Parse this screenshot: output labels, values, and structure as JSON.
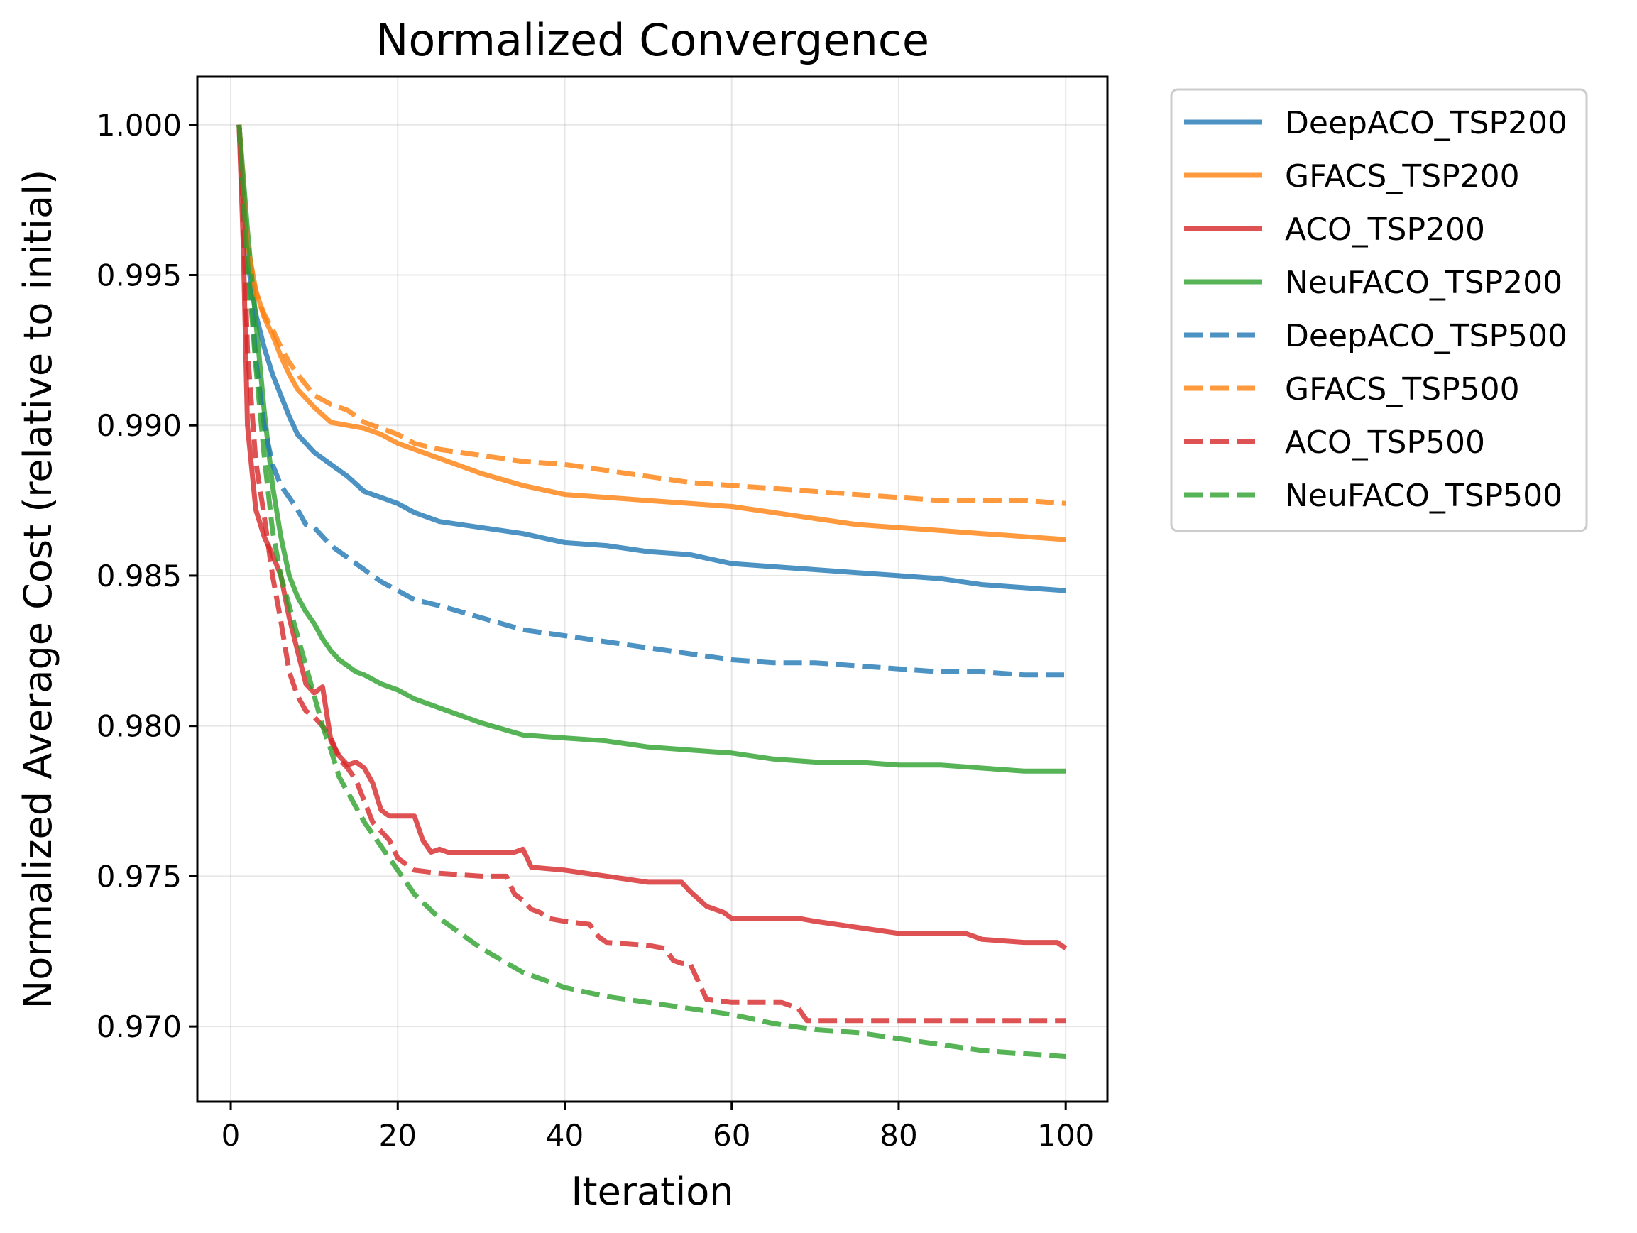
{
  "chart_data": {
    "type": "line",
    "title": "Normalized Convergence",
    "xlabel": "Iteration",
    "ylabel": "Normalized Average Cost (relative to initial)",
    "xlim": [
      -4,
      105
    ],
    "ylim": [
      0.9675,
      1.0016
    ],
    "xticks": [
      0,
      20,
      40,
      60,
      80,
      100
    ],
    "xtick_labels": [
      "0",
      "20",
      "40",
      "60",
      "80",
      "100"
    ],
    "yticks": [
      0.97,
      0.975,
      0.98,
      0.985,
      0.99,
      0.995,
      1.0
    ],
    "ytick_labels": [
      "0.970",
      "0.975",
      "0.980",
      "0.985",
      "0.990",
      "0.995",
      "1.000"
    ],
    "grid": true,
    "legend_position": "outside-right-top",
    "series": [
      {
        "name": "DeepACO_TSP200",
        "color": "#1f77b4",
        "dash": "solid",
        "x": [
          1,
          2,
          3,
          4,
          5,
          6,
          7,
          8,
          10,
          12,
          14,
          16,
          18,
          20,
          22,
          25,
          30,
          35,
          40,
          45,
          50,
          55,
          60,
          65,
          70,
          75,
          80,
          85,
          90,
          95,
          100
        ],
        "y": [
          1.0,
          0.9955,
          0.9937,
          0.9926,
          0.9917,
          0.991,
          0.9903,
          0.9897,
          0.9891,
          0.9887,
          0.9883,
          0.9878,
          0.9876,
          0.9874,
          0.9871,
          0.9868,
          0.9866,
          0.9864,
          0.9861,
          0.986,
          0.9858,
          0.9857,
          0.9854,
          0.9853,
          0.9852,
          0.9851,
          0.985,
          0.9849,
          0.9847,
          0.9846,
          0.9845
        ]
      },
      {
        "name": "GFACS_TSP200",
        "color": "#ff7f0e",
        "dash": "solid",
        "x": [
          1,
          2,
          3,
          4,
          5,
          6,
          7,
          8,
          10,
          12,
          14,
          16,
          18,
          20,
          22,
          25,
          30,
          35,
          40,
          45,
          50,
          55,
          60,
          65,
          70,
          75,
          80,
          85,
          90,
          95,
          100
        ],
        "y": [
          1.0,
          0.996,
          0.9945,
          0.9936,
          0.993,
          0.9923,
          0.9917,
          0.9912,
          0.9906,
          0.9901,
          0.99,
          0.9899,
          0.9897,
          0.9894,
          0.9892,
          0.9889,
          0.9884,
          0.988,
          0.9877,
          0.9876,
          0.9875,
          0.9874,
          0.9873,
          0.9871,
          0.9869,
          0.9867,
          0.9866,
          0.9865,
          0.9864,
          0.9863,
          0.9862
        ]
      },
      {
        "name": "ACO_TSP200",
        "color": "#d62728",
        "dash": "solid",
        "x": [
          1,
          1.5,
          2,
          3,
          4,
          5,
          6,
          7,
          8,
          9,
          10,
          11,
          12,
          13,
          14,
          15,
          16,
          17,
          18,
          19,
          20,
          22,
          23,
          24,
          25,
          26,
          30,
          34,
          35,
          36,
          40,
          45,
          50,
          54,
          55,
          57,
          59,
          60,
          65,
          68,
          70,
          75,
          80,
          85,
          88,
          90,
          95,
          99,
          100
        ],
        "y": [
          1.0,
          0.996,
          0.99,
          0.9872,
          0.9863,
          0.9857,
          0.985,
          0.9836,
          0.9825,
          0.9814,
          0.9811,
          0.9813,
          0.9795,
          0.979,
          0.9787,
          0.9788,
          0.9786,
          0.9781,
          0.9772,
          0.977,
          0.977,
          0.977,
          0.9762,
          0.9758,
          0.9759,
          0.9758,
          0.9758,
          0.9758,
          0.9759,
          0.9753,
          0.9752,
          0.975,
          0.9748,
          0.9748,
          0.9745,
          0.974,
          0.9738,
          0.9736,
          0.9736,
          0.9736,
          0.9735,
          0.9733,
          0.9731,
          0.9731,
          0.9731,
          0.9729,
          0.9728,
          0.9728,
          0.9726
        ]
      },
      {
        "name": "NeuFACO_TSP200",
        "color": "#2ca02c",
        "dash": "solid",
        "x": [
          1,
          2,
          3,
          4,
          5,
          6,
          7,
          8,
          9,
          10,
          11,
          12,
          13,
          14,
          15,
          16,
          18,
          20,
          22,
          25,
          30,
          35,
          40,
          45,
          50,
          55,
          60,
          65,
          70,
          75,
          80,
          85,
          90,
          95,
          100
        ],
        "y": [
          1.0,
          0.9965,
          0.9935,
          0.9905,
          0.988,
          0.9863,
          0.985,
          0.9843,
          0.9838,
          0.9834,
          0.9829,
          0.9825,
          0.9822,
          0.982,
          0.9818,
          0.9817,
          0.9814,
          0.9812,
          0.9809,
          0.9806,
          0.9801,
          0.9797,
          0.9796,
          0.9795,
          0.9793,
          0.9792,
          0.9791,
          0.9789,
          0.9788,
          0.9788,
          0.9787,
          0.9787,
          0.9786,
          0.9785,
          0.9785
        ]
      },
      {
        "name": "DeepACO_TSP500",
        "color": "#1f77b4",
        "dash": "dashed",
        "x": [
          1,
          2,
          3,
          4,
          5,
          6,
          7,
          8,
          9,
          10,
          12,
          14,
          16,
          18,
          20,
          22,
          25,
          30,
          35,
          40,
          45,
          50,
          55,
          60,
          65,
          70,
          75,
          80,
          85,
          90,
          95,
          100
        ],
        "y": [
          1.0,
          0.996,
          0.9922,
          0.99,
          0.9887,
          0.988,
          0.9876,
          0.9872,
          0.9867,
          0.9866,
          0.986,
          0.9856,
          0.9852,
          0.9848,
          0.9845,
          0.9842,
          0.984,
          0.9836,
          0.9832,
          0.983,
          0.9828,
          0.9826,
          0.9824,
          0.9822,
          0.9821,
          0.9821,
          0.982,
          0.9819,
          0.9818,
          0.9818,
          0.9817,
          0.9817
        ]
      },
      {
        "name": "GFACS_TSP500",
        "color": "#ff7f0e",
        "dash": "dashed",
        "x": [
          1,
          2,
          3,
          4,
          5,
          6,
          7,
          8,
          10,
          12,
          14,
          16,
          18,
          20,
          22,
          25,
          30,
          35,
          40,
          45,
          50,
          55,
          60,
          65,
          70,
          75,
          80,
          85,
          90,
          95,
          100
        ],
        "y": [
          1.0,
          0.996,
          0.9944,
          0.9937,
          0.9932,
          0.9926,
          0.9921,
          0.9917,
          0.991,
          0.9907,
          0.9905,
          0.9901,
          0.9899,
          0.9897,
          0.9894,
          0.9892,
          0.989,
          0.9888,
          0.9887,
          0.9885,
          0.9883,
          0.9881,
          0.988,
          0.9879,
          0.9878,
          0.9877,
          0.9876,
          0.9875,
          0.9875,
          0.9875,
          0.9874
        ]
      },
      {
        "name": "ACO_TSP500",
        "color": "#d62728",
        "dash": "dashed",
        "x": [
          1,
          1.5,
          2,
          3,
          4,
          5,
          6,
          7,
          8,
          9,
          10,
          11,
          12,
          13,
          14,
          15,
          16,
          17,
          18,
          19,
          20,
          22,
          25,
          30,
          33,
          34,
          35,
          36,
          37,
          38,
          40,
          43,
          44,
          45,
          50,
          52,
          53,
          54,
          55,
          56,
          57,
          60,
          66,
          68,
          69,
          70,
          80,
          90,
          100
        ],
        "y": [
          1.0,
          0.997,
          0.9925,
          0.9888,
          0.987,
          0.985,
          0.9835,
          0.9818,
          0.981,
          0.9805,
          0.9803,
          0.98,
          0.9796,
          0.9789,
          0.9786,
          0.9782,
          0.9775,
          0.9768,
          0.9765,
          0.9762,
          0.9756,
          0.9752,
          0.9751,
          0.975,
          0.975,
          0.9744,
          0.9742,
          0.9739,
          0.9738,
          0.9736,
          0.9735,
          0.9734,
          0.973,
          0.9728,
          0.9727,
          0.9726,
          0.9722,
          0.9721,
          0.9721,
          0.9715,
          0.9709,
          0.9708,
          0.9708,
          0.9706,
          0.9702,
          0.9702,
          0.9702,
          0.9702,
          0.9702
        ]
      },
      {
        "name": "NeuFACO_TSP500",
        "color": "#2ca02c",
        "dash": "dashed",
        "x": [
          1,
          2,
          3,
          4,
          5,
          6,
          7,
          8,
          9,
          10,
          11,
          12,
          13,
          14,
          15,
          16,
          18,
          20,
          22,
          25,
          28,
          30,
          35,
          40,
          45,
          50,
          55,
          60,
          65,
          70,
          75,
          80,
          85,
          90,
          95,
          100
        ],
        "y": [
          1.0,
          0.9955,
          0.992,
          0.989,
          0.9865,
          0.985,
          0.984,
          0.983,
          0.982,
          0.981,
          0.98,
          0.9792,
          0.9783,
          0.9778,
          0.9773,
          0.9768,
          0.976,
          0.9752,
          0.9744,
          0.9736,
          0.973,
          0.9726,
          0.9718,
          0.9713,
          0.971,
          0.9708,
          0.9706,
          0.9704,
          0.9701,
          0.9699,
          0.9698,
          0.9696,
          0.9694,
          0.9692,
          0.9691,
          0.969
        ]
      }
    ]
  }
}
